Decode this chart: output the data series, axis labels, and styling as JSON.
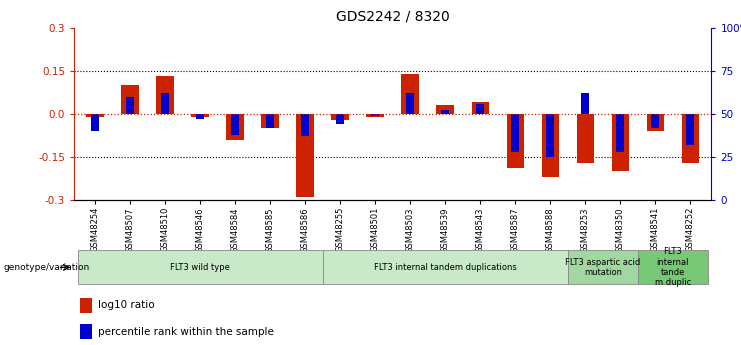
{
  "title": "GDS2242 / 8320",
  "samples": [
    "GSM48254",
    "GSM48507",
    "GSM48510",
    "GSM48546",
    "GSM48584",
    "GSM48585",
    "GSM48586",
    "GSM48255",
    "GSM48501",
    "GSM48503",
    "GSM48539",
    "GSM48543",
    "GSM48587",
    "GSM48588",
    "GSM48253",
    "GSM48350",
    "GSM48541",
    "GSM48252"
  ],
  "log10_ratio": [
    -0.01,
    0.1,
    0.13,
    -0.01,
    -0.09,
    -0.05,
    -0.29,
    -0.02,
    -0.01,
    0.14,
    0.03,
    0.04,
    -0.19,
    -0.22,
    -0.17,
    -0.2,
    -0.06,
    -0.17
  ],
  "percentile_rank": [
    40,
    60,
    62,
    47,
    38,
    42,
    37,
    44,
    49,
    62,
    52,
    56,
    28,
    25,
    62,
    28,
    42,
    32
  ],
  "groups": [
    {
      "label": "FLT3 wild type",
      "start": 0,
      "end": 7,
      "color": "#c8eac8"
    },
    {
      "label": "FLT3 internal tandem duplications",
      "start": 7,
      "end": 14,
      "color": "#c8eac8"
    },
    {
      "label": "FLT3 aspartic acid\nmutation",
      "start": 14,
      "end": 16,
      "color": "#a0d8a0"
    },
    {
      "label": "FLT3\ninternal\ntande\nm duplic",
      "start": 16,
      "end": 18,
      "color": "#78c878"
    }
  ],
  "ylim": [
    -0.3,
    0.3
  ],
  "yticks_left": [
    -0.3,
    -0.15,
    0.0,
    0.15,
    0.3
  ],
  "yticks_right": [
    0,
    25,
    50,
    75,
    100
  ],
  "red_color": "#cc2200",
  "blue_color": "#0000cc",
  "background_color": "#ffffff"
}
